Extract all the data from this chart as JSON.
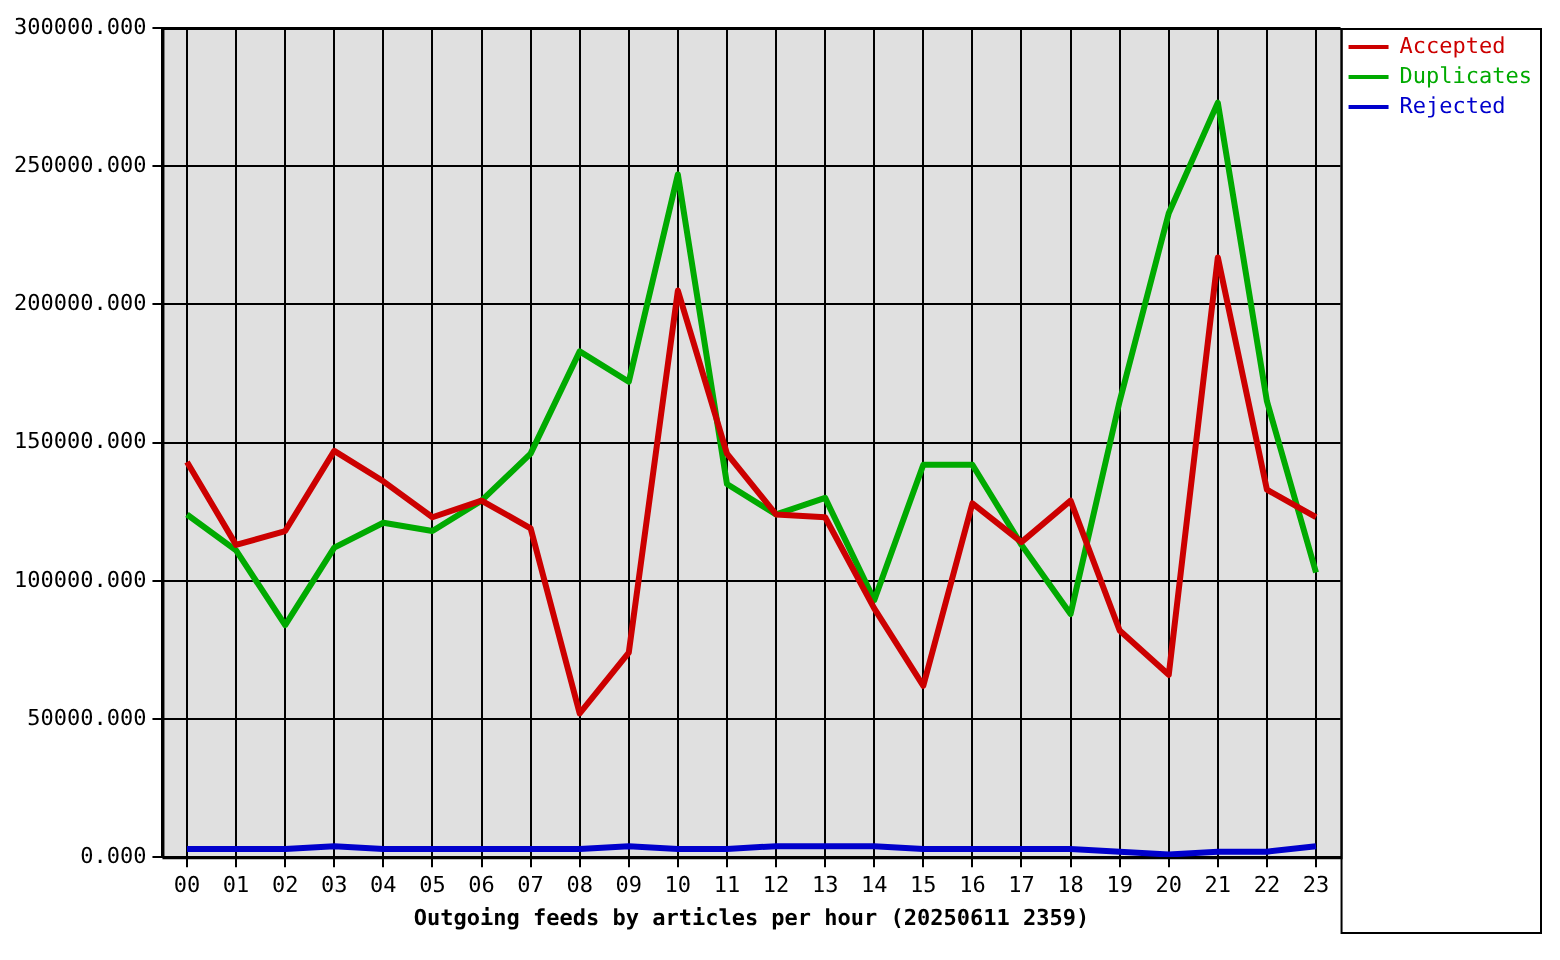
{
  "chart_data": {
    "type": "line",
    "xlabel": "Outgoing feeds by articles per hour (20250611 2359)",
    "categories": [
      "00",
      "01",
      "02",
      "03",
      "04",
      "05",
      "06",
      "07",
      "08",
      "09",
      "10",
      "11",
      "12",
      "13",
      "14",
      "15",
      "16",
      "17",
      "18",
      "19",
      "20",
      "21",
      "22",
      "23"
    ],
    "series": [
      {
        "name": "Accepted",
        "color": "#cc0000",
        "values": [
          143000,
          113000,
          118000,
          147000,
          136000,
          123000,
          129000,
          119000,
          52000,
          74000,
          205000,
          146000,
          124000,
          123000,
          90000,
          62000,
          128000,
          114000,
          129000,
          82000,
          66000,
          217000,
          133000,
          123000
        ]
      },
      {
        "name": "Duplicates",
        "color": "#00aa00",
        "values": [
          124000,
          111000,
          84000,
          112000,
          121000,
          118000,
          129000,
          146000,
          183000,
          172000,
          247000,
          135000,
          124000,
          130000,
          93000,
          142000,
          142000,
          113000,
          88000,
          165000,
          233000,
          273000,
          165000,
          103000
        ]
      },
      {
        "name": "Rejected",
        "color": "#0000cc",
        "values": [
          3000,
          3000,
          3000,
          4000,
          3000,
          3000,
          3000,
          3000,
          3000,
          4000,
          3000,
          3000,
          4000,
          4000,
          4000,
          3000,
          3000,
          3000,
          3000,
          2000,
          1000,
          2000,
          2000,
          4000
        ]
      }
    ],
    "ylim": [
      0,
      300000
    ],
    "yticks": [
      {
        "value": 0,
        "label": "0.000"
      },
      {
        "value": 50000,
        "label": "50000.000"
      },
      {
        "value": 100000,
        "label": "100000.000"
      },
      {
        "value": 150000,
        "label": "150000.000"
      },
      {
        "value": 200000,
        "label": "200000.000"
      },
      {
        "value": 250000,
        "label": "250000.000"
      },
      {
        "value": 300000,
        "label": "300000.000"
      }
    ],
    "grid": true,
    "legend": "top right",
    "marker": "none",
    "line_style": "solid"
  }
}
